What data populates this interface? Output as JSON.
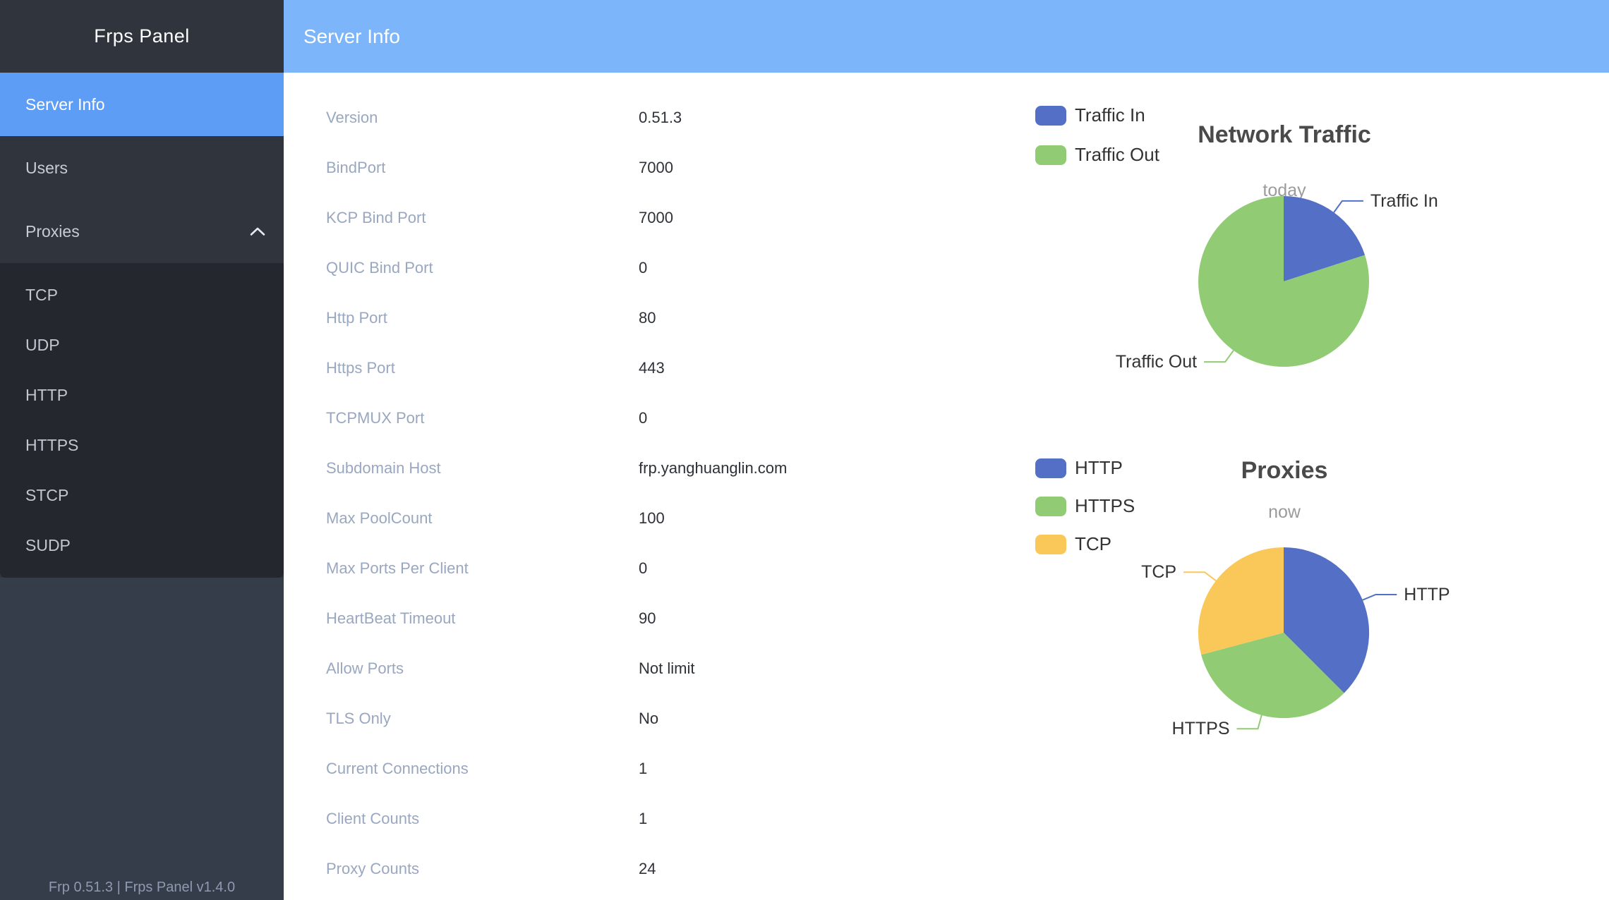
{
  "app": {
    "title": "Frps Panel",
    "footer": "Frp 0.51.3 | Frps Panel v1.4.0"
  },
  "header": {
    "title": "Server Info"
  },
  "sidebar": {
    "items": [
      {
        "label": "Server Info",
        "active": true
      },
      {
        "label": "Users",
        "active": false
      },
      {
        "label": "Proxies",
        "active": false,
        "expanded": true,
        "children": [
          "TCP",
          "UDP",
          "HTTP",
          "HTTPS",
          "STCP",
          "SUDP"
        ]
      }
    ]
  },
  "server_info": {
    "rows": [
      {
        "label": "Version",
        "value": "0.51.3"
      },
      {
        "label": "BindPort",
        "value": "7000"
      },
      {
        "label": "KCP Bind Port",
        "value": "7000"
      },
      {
        "label": "QUIC Bind Port",
        "value": "0"
      },
      {
        "label": "Http Port",
        "value": "80"
      },
      {
        "label": "Https Port",
        "value": "443"
      },
      {
        "label": "TCPMUX Port",
        "value": "0"
      },
      {
        "label": "Subdomain Host",
        "value": "frp.yanghuanglin.com"
      },
      {
        "label": "Max PoolCount",
        "value": "100"
      },
      {
        "label": "Max Ports Per Client",
        "value": "0"
      },
      {
        "label": "HeartBeat Timeout",
        "value": "90"
      },
      {
        "label": "Allow Ports",
        "value": "Not limit"
      },
      {
        "label": "TLS Only",
        "value": "No"
      },
      {
        "label": "Current Connections",
        "value": "1"
      },
      {
        "label": "Client Counts",
        "value": "1"
      },
      {
        "label": "Proxy Counts",
        "value": "24"
      }
    ]
  },
  "chart_data": [
    {
      "type": "pie",
      "title": "Network Traffic",
      "subtitle": "today",
      "labels": [
        "Traffic In",
        "Traffic Out"
      ],
      "values": [
        20,
        80
      ],
      "values_note": "approximate relative share (%), read from slice angles",
      "colors": [
        "#5470c6",
        "#91cc75"
      ],
      "legend_position": "left",
      "start_angle": "top, clockwise"
    },
    {
      "type": "pie",
      "title": "Proxies",
      "subtitle": "now",
      "labels": [
        "HTTP",
        "HTTPS",
        "TCP"
      ],
      "values": [
        9,
        8,
        7
      ],
      "values_note": "proxy counts per type; total matches Proxy Counts = 24",
      "colors": [
        "#5470c6",
        "#91cc75",
        "#fac858"
      ],
      "legend_position": "left",
      "start_angle": "top, clockwise"
    }
  ],
  "colors": {
    "header_bg": "#7cb5f9",
    "sidebar_menu_bg": "#2f343d",
    "sidebar_submenu_bg": "#24272e",
    "sidebar_lower_bg": "#353c4a",
    "active_item_bg": "#5e9df5",
    "row_label_text": "#9aa7c0",
    "row_value_text": "#2e3138"
  }
}
